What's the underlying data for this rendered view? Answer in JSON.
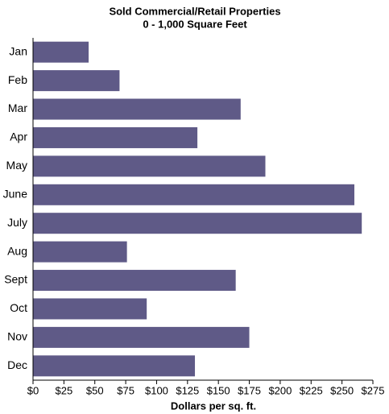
{
  "chart_data": {
    "type": "bar",
    "orientation": "horizontal",
    "title": "Sold Commercial/Retail Properties",
    "subtitle": "0 - 1,000 Square Feet",
    "x_label": "Dollars per sq. ft.",
    "categories": [
      "Jan",
      "Feb",
      "Mar",
      "Apr",
      "May",
      "June",
      "July",
      "Aug",
      "Sept",
      "Oct",
      "Nov",
      "Dec"
    ],
    "values": [
      45,
      70,
      168,
      133,
      188,
      260,
      266,
      76,
      164,
      92,
      175,
      131
    ],
    "color": "#5f5a87",
    "xlim": [
      0,
      275
    ],
    "xticks": [
      {
        "value": 0,
        "label": "$0"
      },
      {
        "value": 25,
        "label": "$25"
      },
      {
        "value": 50,
        "label": "$50"
      },
      {
        "value": 75,
        "label": "$75"
      },
      {
        "value": 100,
        "label": "$100"
      },
      {
        "value": 125,
        "label": "$125"
      },
      {
        "value": 150,
        "label": "$150"
      },
      {
        "value": 175,
        "label": "$175"
      },
      {
        "value": 200,
        "label": "$200"
      },
      {
        "value": 225,
        "label": "$225"
      },
      {
        "value": 250,
        "label": "$250"
      },
      {
        "value": 275,
        "label": "$275"
      }
    ],
    "grid": false
  }
}
